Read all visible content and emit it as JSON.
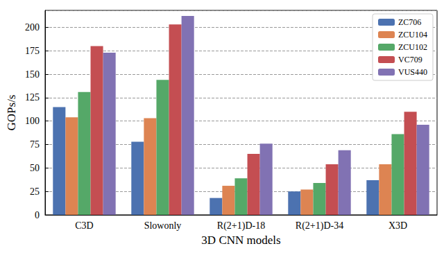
{
  "chart_data": {
    "type": "bar",
    "x_label": "3D CNN models",
    "y_label": "GOPs/s",
    "categories": [
      "C3D",
      "Slowonly",
      "R(2+1)D-18",
      "R(2+1)D-34",
      "X3D"
    ],
    "series": [
      {
        "name": "ZC706",
        "color": "#4c72b0",
        "values": [
          115,
          78,
          18,
          25,
          37
        ]
      },
      {
        "name": "ZCU104",
        "color": "#dd8452",
        "values": [
          104,
          103,
          31,
          27,
          54
        ]
      },
      {
        "name": "ZCU102",
        "color": "#55a868",
        "values": [
          131,
          144,
          39,
          34,
          86
        ]
      },
      {
        "name": "VC709",
        "color": "#c44e52",
        "values": [
          180,
          203,
          65,
          54,
          110
        ]
      },
      {
        "name": "VUS440",
        "color": "#8172b3",
        "values": [
          173,
          212,
          76,
          69,
          96
        ]
      }
    ],
    "ylim": [
      0,
      218
    ],
    "yticks": [
      0,
      25,
      50,
      75,
      100,
      125,
      150,
      175,
      200
    ],
    "grid": true,
    "legend": "upper right"
  }
}
